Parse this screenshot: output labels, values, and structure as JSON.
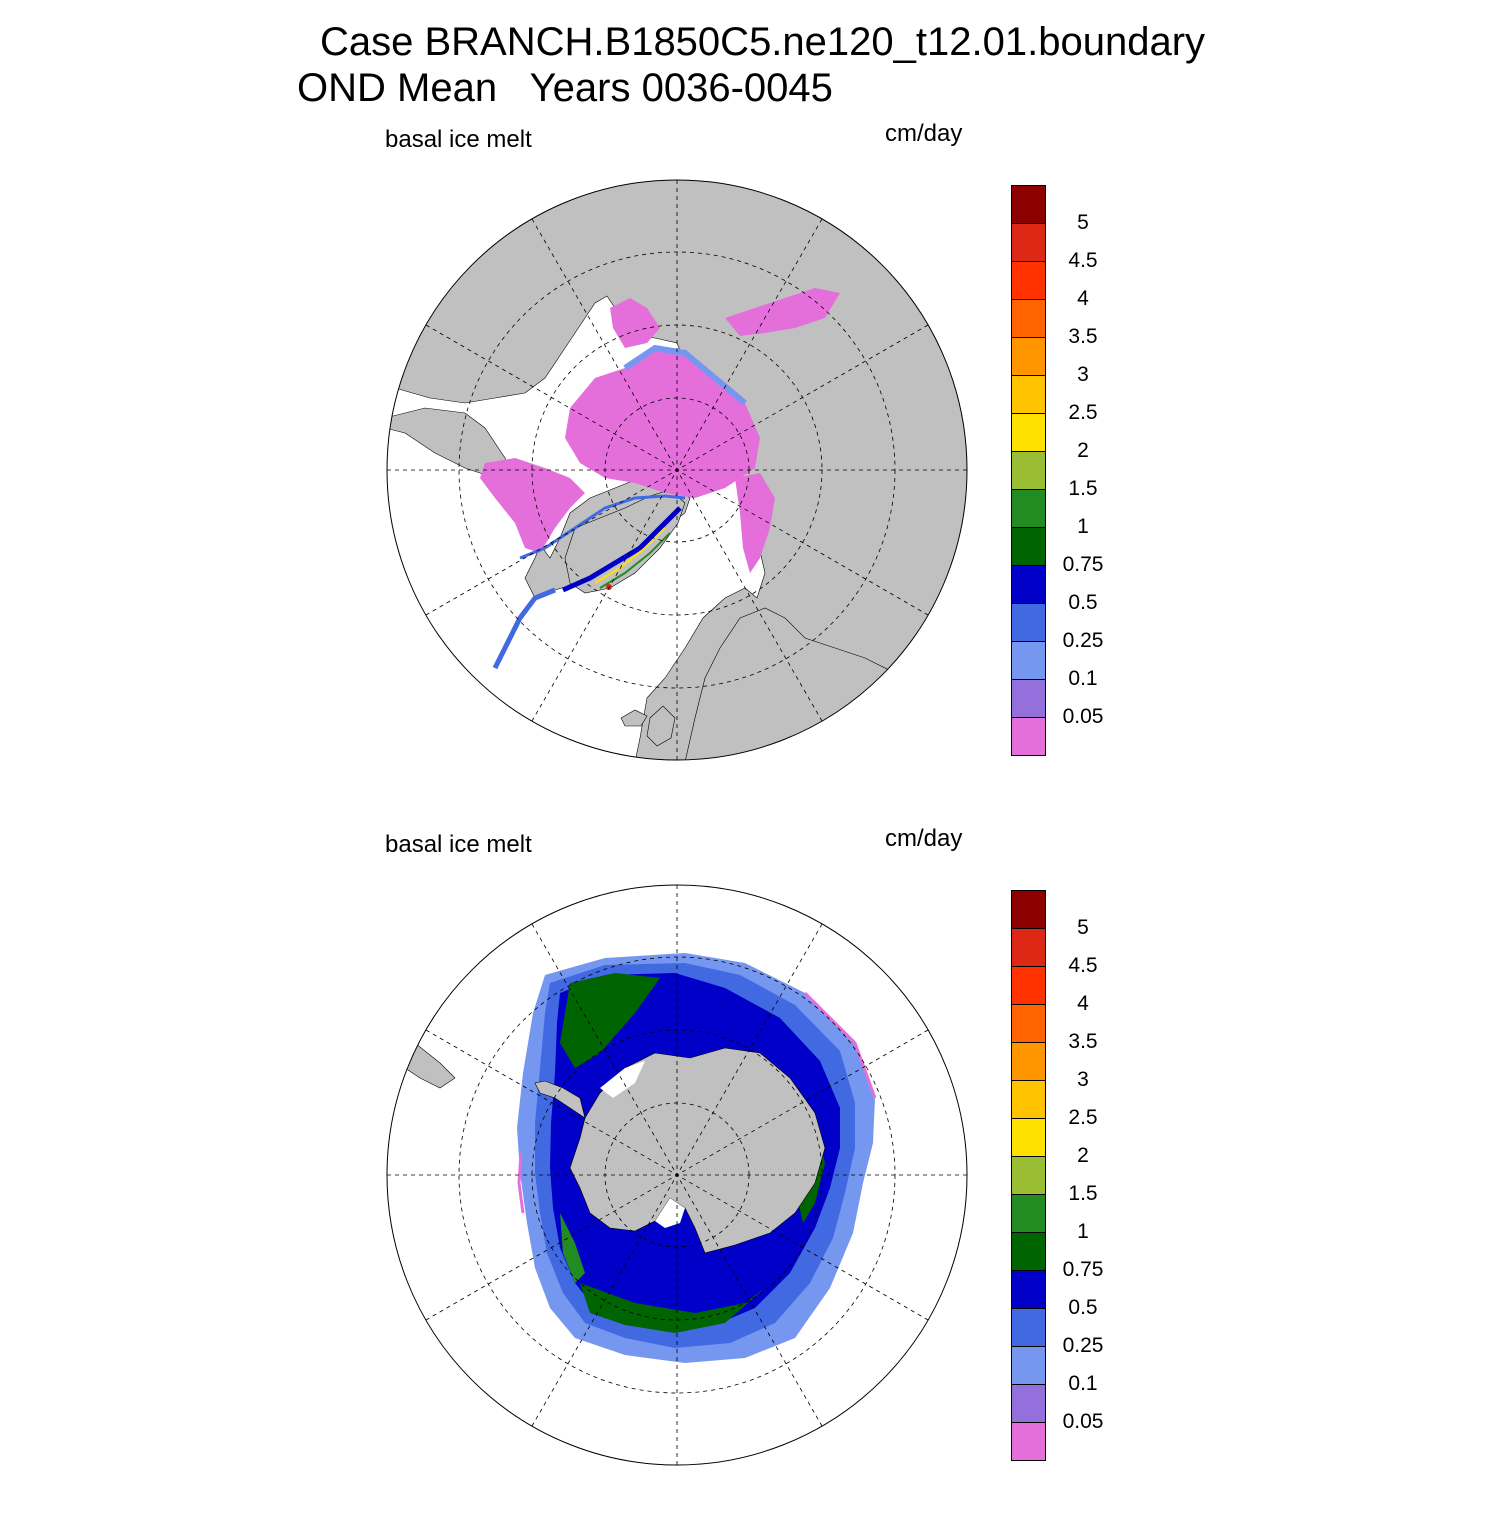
{
  "title": {
    "line1": "Case BRANCH.B1850C5.ne120_t12.01.boundary",
    "line2": "OND Mean   Years 0036-0045"
  },
  "panels": [
    {
      "id": "north",
      "left_label": "basal ice melt",
      "right_label": "cm/day",
      "hemisphere": "Arctic (north polar stereographic)"
    },
    {
      "id": "south",
      "left_label": "basal ice melt",
      "right_label": "cm/day",
      "hemisphere": "Antarctic (south polar stereographic)"
    }
  ],
  "colorbar": {
    "levels": [
      "0.05",
      "0.1",
      "0.25",
      "0.5",
      "0.75",
      "1",
      "1.5",
      "2",
      "2.5",
      "3",
      "3.5",
      "4",
      "4.5",
      "5"
    ],
    "colors": [
      "#E46FDA",
      "#9370DB",
      "#7597F0",
      "#4169E1",
      "#0000C8",
      "#006400",
      "#228B22",
      "#9ABE33",
      "#FFE100",
      "#FFC300",
      "#FF9600",
      "#FF6400",
      "#FF3200",
      "#DC2814",
      "#8C0000"
    ]
  },
  "map_colors": {
    "land": "#C0C0C0",
    "ocean": "#FFFFFF"
  }
}
